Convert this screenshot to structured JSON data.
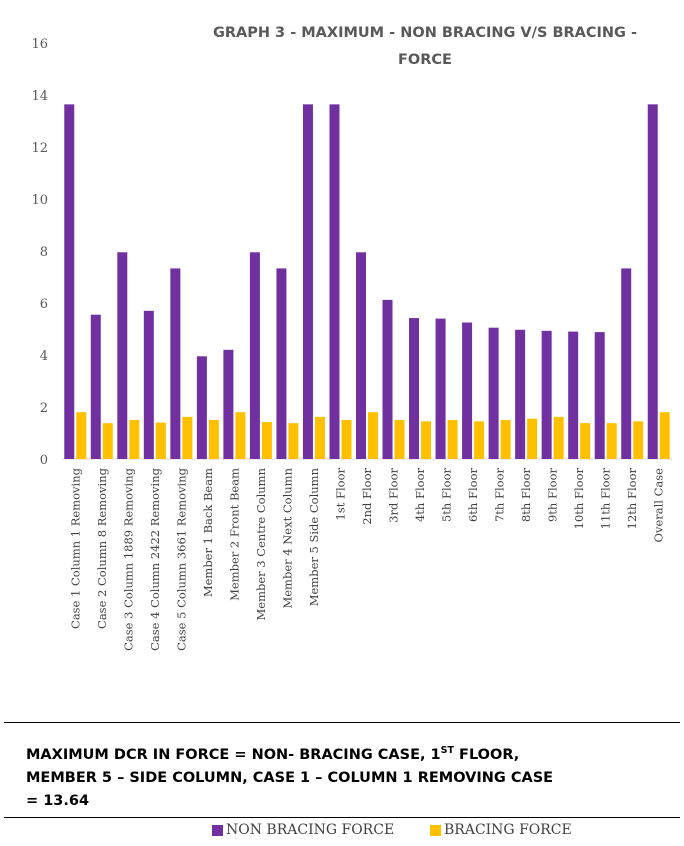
{
  "chart_data": {
    "type": "bar",
    "title": "GRAPH 3 - MAXIMUM - NON BRACING V/S BRACING - FORCE",
    "title_lines": [
      "GRAPH 3 - MAXIMUM - NON BRACING V/S BRACING -",
      "FORCE"
    ],
    "xlabel": "",
    "ylabel": "",
    "ylim": [
      0,
      16
    ],
    "yticks": [
      0,
      2,
      4,
      6,
      8,
      10,
      12,
      14,
      16
    ],
    "grid": false,
    "legend_position": "bottom",
    "categories": [
      "Case 1 Column 1 Removing",
      "Case 2 Column 8 Removing",
      "Case 3 Column 1889 Removing",
      "Case 4 Column 2422 Removing",
      "Case 5 Column 3661 Removing",
      "Member 1 Back Beam",
      "Member 2 Front Beam",
      "Member 3 Centre Column",
      "Member 4 Next Column",
      "Member 5 Side Column",
      "1st Floor",
      "2nd Floor",
      "3rd Floor",
      "4th Floor",
      "5th Floor",
      "6th Floor",
      "7th Floor",
      "8th Floor",
      "9th Floor",
      "10th Floor",
      "11th Floor",
      "12th Floor",
      "Overall Case"
    ],
    "series": [
      {
        "name": "NON BRACING FORCE",
        "color": "#7030A0",
        "values": [
          13.64,
          5.55,
          7.95,
          5.7,
          7.33,
          3.95,
          4.2,
          7.95,
          7.33,
          13.64,
          13.64,
          7.95,
          6.12,
          5.42,
          5.4,
          5.25,
          5.05,
          4.97,
          4.93,
          4.9,
          4.88,
          7.33,
          13.64
        ]
      },
      {
        "name": "BRACING FORCE",
        "color": "#FFC000",
        "values": [
          1.8,
          1.38,
          1.5,
          1.4,
          1.62,
          1.5,
          1.8,
          1.42,
          1.38,
          1.62,
          1.5,
          1.8,
          1.5,
          1.45,
          1.5,
          1.45,
          1.5,
          1.55,
          1.62,
          1.38,
          1.38,
          1.45,
          1.8
        ]
      }
    ]
  },
  "caption": {
    "line1_a": "MAXIMUM DCR IN FORCE = NON- BRACING CASE, 1",
    "line1_sup": "ST",
    "line1_b": " FLOOR,",
    "line2": "MEMBER 5 – SIDE COLUMN, CASE 1 – COLUMN 1 REMOVING CASE",
    "line3": "= 13.64"
  }
}
